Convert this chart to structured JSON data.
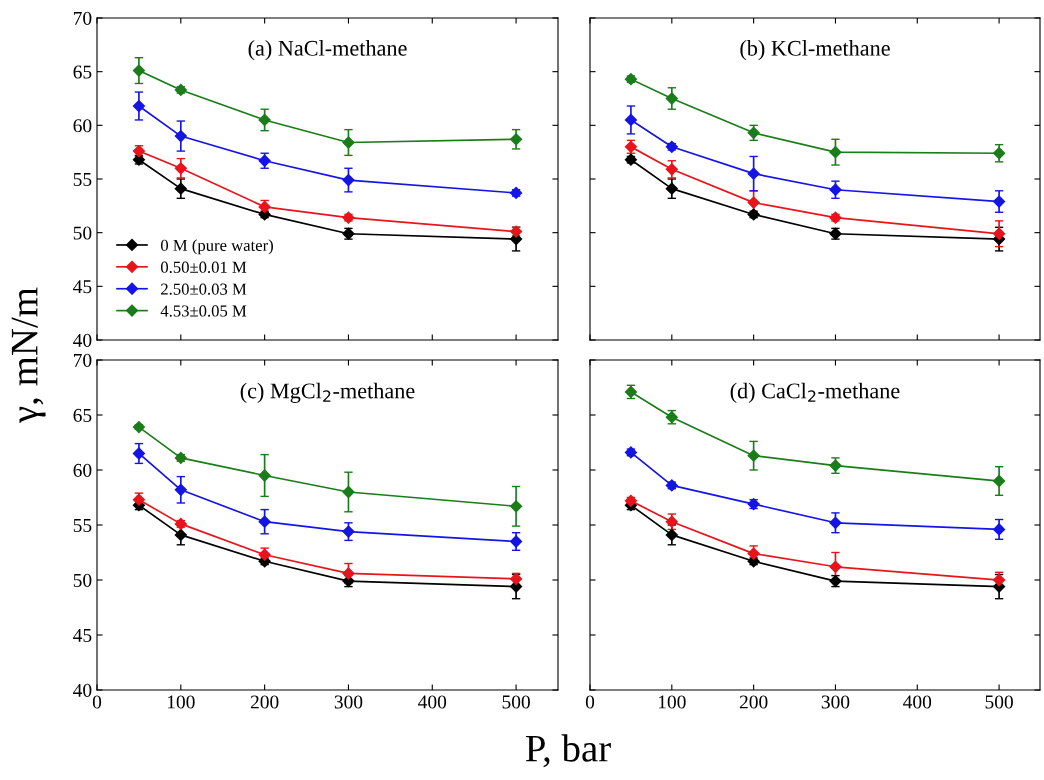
{
  "chart_data": [
    {
      "type": "line",
      "title": "(a) NaCl-methane",
      "ylabel": "γ, mN/m",
      "x": [
        50,
        100,
        200,
        300,
        500
      ],
      "xlim": [
        0,
        550
      ],
      "xticks": [
        0,
        100,
        200,
        300,
        400,
        500
      ],
      "ylim": [
        40,
        70
      ],
      "yticks": [
        40,
        45,
        50,
        55,
        60,
        65,
        70
      ],
      "tick_labels": "y",
      "marker": "diamond",
      "legend": "bottom left",
      "grid": false,
      "series": [
        {
          "name": "0 M (pure water)",
          "color": "#000000",
          "values": [
            56.8,
            54.1,
            51.7,
            49.9,
            49.4
          ],
          "errors": [
            0.4,
            0.9,
            0.3,
            0.5,
            1.1
          ]
        },
        {
          "name": "0.50±0.01 M",
          "color": "#e8141b",
          "values": [
            57.6,
            56.0,
            52.4,
            51.4,
            50.1
          ],
          "errors": [
            0.5,
            0.9,
            0.6,
            0.3,
            0.4
          ]
        },
        {
          "name": "2.50±0.03 M",
          "color": "#1414e6",
          "values": [
            61.8,
            59.0,
            56.7,
            54.9,
            53.7
          ],
          "errors": [
            1.3,
            1.4,
            0.7,
            1.1,
            0.3
          ]
        },
        {
          "name": "4.53±0.05 M",
          "color": "#1a7d1a",
          "values": [
            65.1,
            63.3,
            60.5,
            58.4,
            58.7
          ],
          "errors": [
            1.2,
            0.3,
            1.0,
            1.2,
            0.9
          ]
        }
      ]
    },
    {
      "type": "line",
      "title": "(b) KCl-methane",
      "x": [
        50,
        100,
        200,
        300,
        500
      ],
      "xlim": [
        0,
        550
      ],
      "xticks": [
        0,
        100,
        200,
        300,
        400,
        500
      ],
      "ylim": [
        40,
        70
      ],
      "yticks": [
        40,
        45,
        50,
        55,
        60,
        65,
        70
      ],
      "tick_labels": false,
      "marker": "diamond",
      "grid": false,
      "series": [
        {
          "color": "#000000",
          "values": [
            56.8,
            54.1,
            51.7,
            49.9,
            49.4
          ],
          "errors": [
            0.3,
            0.9,
            0.3,
            0.5,
            1.1
          ]
        },
        {
          "color": "#e8141b",
          "values": [
            58.0,
            55.9,
            52.8,
            51.4,
            49.9
          ],
          "errors": [
            0.6,
            0.8,
            1.1,
            0.3,
            1.2
          ]
        },
        {
          "color": "#1414e6",
          "values": [
            60.5,
            58.0,
            55.5,
            54.0,
            52.9
          ],
          "errors": [
            1.3,
            0.3,
            1.6,
            0.8,
            1.0
          ]
        },
        {
          "color": "#1a7d1a",
          "values": [
            64.3,
            62.5,
            59.3,
            57.5,
            57.4
          ],
          "errors": [
            0.3,
            1.0,
            0.7,
            1.2,
            0.8
          ]
        }
      ]
    },
    {
      "type": "line",
      "title": "(c) MgCl$_{2}$-methane",
      "xlabel": "P, bar",
      "x": [
        50,
        100,
        200,
        300,
        500
      ],
      "xlim": [
        0,
        550
      ],
      "xticks": [
        0,
        100,
        200,
        300,
        400,
        500
      ],
      "ylim": [
        40,
        70
      ],
      "yticks": [
        40,
        45,
        50,
        55,
        60,
        65,
        70
      ],
      "marker": "diamond",
      "grid": false,
      "series": [
        {
          "color": "#000000",
          "values": [
            56.8,
            54.1,
            51.7,
            49.9,
            49.4
          ],
          "errors": [
            0.4,
            0.9,
            0.3,
            0.5,
            1.1
          ]
        },
        {
          "color": "#e8141b",
          "values": [
            57.3,
            55.1,
            52.3,
            50.6,
            50.1
          ],
          "errors": [
            0.6,
            0.3,
            0.6,
            0.9,
            0.5
          ]
        },
        {
          "color": "#1414e6",
          "values": [
            61.5,
            58.2,
            55.3,
            54.4,
            53.5
          ],
          "errors": [
            0.9,
            1.2,
            1.1,
            0.8,
            0.8
          ]
        },
        {
          "color": "#1a7d1a",
          "values": [
            63.9,
            61.1,
            59.5,
            58.0,
            56.7
          ],
          "errors": [
            0.2,
            0.3,
            1.9,
            1.8,
            1.8
          ]
        }
      ]
    },
    {
      "type": "line",
      "title": "(d) CaCl$_{2}$-methane",
      "x": [
        50,
        100,
        200,
        300,
        500
      ],
      "xlim": [
        0,
        550
      ],
      "xticks": [
        0,
        100,
        200,
        300,
        400,
        500
      ],
      "ylim": [
        40,
        70
      ],
      "yticks": [
        40,
        45,
        50,
        55,
        60,
        65,
        70
      ],
      "tick_labels": "x",
      "marker": "diamond",
      "grid": false,
      "series": [
        {
          "color": "#000000",
          "values": [
            56.8,
            54.1,
            51.7,
            49.9,
            49.4
          ],
          "errors": [
            0.4,
            0.9,
            0.3,
            0.5,
            1.1
          ]
        },
        {
          "color": "#e8141b",
          "values": [
            57.2,
            55.3,
            52.4,
            51.2,
            50.0
          ],
          "errors": [
            0.3,
            0.7,
            0.7,
            1.3,
            0.7
          ]
        },
        {
          "color": "#1414e6",
          "values": [
            61.6,
            58.6,
            56.9,
            55.2,
            54.6
          ],
          "errors": [
            0.3,
            0.3,
            0.4,
            0.9,
            0.9
          ]
        },
        {
          "color": "#1a7d1a",
          "values": [
            67.1,
            64.8,
            61.3,
            60.4,
            59.0
          ],
          "errors": [
            0.6,
            0.6,
            1.3,
            0.7,
            1.3
          ]
        }
      ]
    }
  ]
}
